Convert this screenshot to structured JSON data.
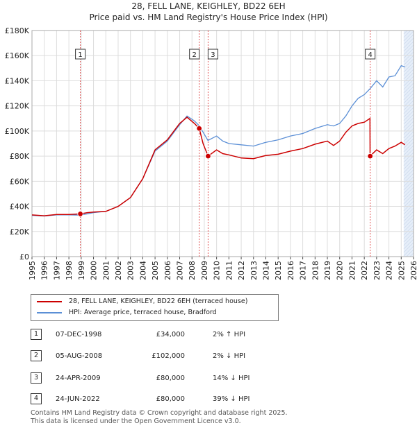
{
  "title": "28, FELL LANE, KEIGHLEY, BD22 6EH",
  "subtitle": "Price paid vs. HM Land Registry's House Price Index (HPI)",
  "colors": {
    "property": "#cc0000",
    "hpi": "#5b8fd6",
    "marker_line": "#e05555",
    "shade": "#e6eef9"
  },
  "chart_data": {
    "type": "line",
    "xlim": [
      1995,
      2026
    ],
    "ylim": [
      0,
      180000
    ],
    "x_ticks": [
      "1995",
      "1996",
      "1997",
      "1998",
      "1999",
      "2000",
      "2001",
      "2002",
      "2003",
      "2004",
      "2005",
      "2006",
      "2007",
      "2008",
      "2009",
      "2010",
      "2011",
      "2012",
      "2013",
      "2014",
      "2015",
      "2016",
      "2017",
      "2018",
      "2019",
      "2020",
      "2021",
      "2022",
      "2023",
      "2024",
      "2025",
      "2026"
    ],
    "y_ticks": [
      {
        "v": 0,
        "label": "£0"
      },
      {
        "v": 20000,
        "label": "£20K"
      },
      {
        "v": 40000,
        "label": "£40K"
      },
      {
        "v": 60000,
        "label": "£60K"
      },
      {
        "v": 80000,
        "label": "£80K"
      },
      {
        "v": 100000,
        "label": "£100K"
      },
      {
        "v": 120000,
        "label": "£120K"
      },
      {
        "v": 140000,
        "label": "£140K"
      },
      {
        "v": 160000,
        "label": "£160K"
      },
      {
        "v": 180000,
        "label": "£180K"
      }
    ],
    "future_from": 2025.2,
    "series": [
      {
        "name": "HPI: Average price, terraced house, Bradford",
        "color": "#5b8fd6",
        "points": [
          [
            1995,
            32800
          ],
          [
            1996,
            32300
          ],
          [
            1997,
            33200
          ],
          [
            1998,
            33200
          ],
          [
            1998.9,
            33000
          ],
          [
            1999.5,
            34000
          ],
          [
            2000,
            35000
          ],
          [
            2001,
            36000
          ],
          [
            2002,
            40000
          ],
          [
            2003,
            47000
          ],
          [
            2004,
            62000
          ],
          [
            2005,
            84000
          ],
          [
            2006,
            92000
          ],
          [
            2007,
            105000
          ],
          [
            2007.6,
            112000
          ],
          [
            2008.2,
            108000
          ],
          [
            2008.6,
            104000
          ],
          [
            2009.3,
            92500
          ],
          [
            2010,
            96000
          ],
          [
            2010.5,
            92000
          ],
          [
            2011,
            90000
          ],
          [
            2012,
            89000
          ],
          [
            2013,
            88000
          ],
          [
            2014,
            91000
          ],
          [
            2015,
            93000
          ],
          [
            2016,
            96000
          ],
          [
            2017,
            98000
          ],
          [
            2018,
            102000
          ],
          [
            2019,
            105000
          ],
          [
            2019.5,
            104000
          ],
          [
            2020,
            106000
          ],
          [
            2020.5,
            112000
          ],
          [
            2021,
            120000
          ],
          [
            2021.5,
            126000
          ],
          [
            2022,
            129000
          ],
          [
            2022.5,
            134000
          ],
          [
            2023,
            140000
          ],
          [
            2023.5,
            135000
          ],
          [
            2024,
            143000
          ],
          [
            2024.5,
            144000
          ],
          [
            2025,
            152000
          ],
          [
            2025.3,
            151000
          ]
        ]
      },
      {
        "name": "28, FELL LANE, KEIGHLEY, BD22 6EH (terraced house)",
        "color": "#cc0000",
        "points": [
          [
            1995,
            33200
          ],
          [
            1996,
            32500
          ],
          [
            1997,
            33500
          ],
          [
            1998,
            33500
          ],
          [
            1998.93,
            34000
          ],
          [
            1999.5,
            35000
          ],
          [
            2000,
            35500
          ],
          [
            2001,
            36000
          ],
          [
            2002,
            40000
          ],
          [
            2003,
            47000
          ],
          [
            2004,
            62000
          ],
          [
            2005,
            85000
          ],
          [
            2006,
            93000
          ],
          [
            2007,
            106000
          ],
          [
            2007.6,
            111000
          ],
          [
            2008.2,
            106000
          ],
          [
            2008.59,
            102000
          ],
          [
            2008.9,
            90000
          ],
          [
            2009.31,
            80000
          ],
          [
            2010,
            85000
          ],
          [
            2010.5,
            82000
          ],
          [
            2011,
            81000
          ],
          [
            2012,
            78500
          ],
          [
            2013,
            78000
          ],
          [
            2014,
            80500
          ],
          [
            2015,
            81500
          ],
          [
            2016,
            84000
          ],
          [
            2017,
            86000
          ],
          [
            2018,
            89500
          ],
          [
            2019,
            92000
          ],
          [
            2019.5,
            88500
          ],
          [
            2020,
            92000
          ],
          [
            2020.5,
            99000
          ],
          [
            2021,
            104000
          ],
          [
            2021.5,
            106000
          ],
          [
            2022,
            107000
          ],
          [
            2022.46,
            110000
          ],
          [
            2022.47,
            80000
          ],
          [
            2023,
            85000
          ],
          [
            2023.5,
            82000
          ],
          [
            2024,
            86000
          ],
          [
            2024.5,
            88000
          ],
          [
            2025,
            91000
          ],
          [
            2025.3,
            89000
          ]
        ]
      }
    ],
    "sales": [
      {
        "n": "1",
        "x": 1998.93,
        "price": 34000
      },
      {
        "n": "2",
        "x": 2008.59,
        "price": 102000
      },
      {
        "n": "3",
        "x": 2009.31,
        "price": 80000
      },
      {
        "n": "4",
        "x": 2022.48,
        "price": 80000
      }
    ]
  },
  "legend": {
    "property": "28, FELL LANE, KEIGHLEY, BD22 6EH (terraced house)",
    "hpi": "HPI: Average price, terraced house, Bradford"
  },
  "table": [
    {
      "n": "1",
      "date": "07-DEC-1998",
      "price": "£34,000",
      "hpi": "2% ↑ HPI"
    },
    {
      "n": "2",
      "date": "05-AUG-2008",
      "price": "£102,000",
      "hpi": "2% ↓ HPI"
    },
    {
      "n": "3",
      "date": "24-APR-2009",
      "price": "£80,000",
      "hpi": "14% ↓ HPI"
    },
    {
      "n": "4",
      "date": "24-JUN-2022",
      "price": "£80,000",
      "hpi": "39% ↓ HPI"
    }
  ],
  "footer": {
    "line1": "Contains HM Land Registry data © Crown copyright and database right 2025.",
    "line2": "This data is licensed under the Open Government Licence v3.0."
  }
}
